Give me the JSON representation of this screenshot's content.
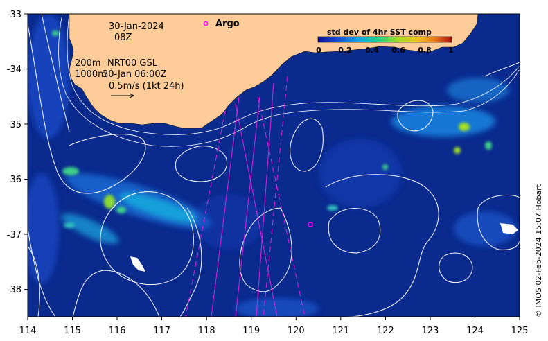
{
  "map": {
    "lon_range": [
      114,
      125
    ],
    "lat_range": [
      -38.5,
      -33
    ],
    "lon_ticks": [
      "114",
      "115",
      "116",
      "117",
      "118",
      "119",
      "120",
      "121",
      "122",
      "123",
      "124",
      "125"
    ],
    "lat_ticks": [
      "-33",
      "-34",
      "-35",
      "-36",
      "-37",
      "-38"
    ],
    "land_color": "#fdcc99",
    "ocean_color": "#0a2a8e",
    "contour_color": "#ffffff",
    "track_color": "#e020e0"
  },
  "annotations": {
    "date": "30-Jan-2024",
    "hour": "08Z",
    "isobath_200": "200m",
    "isobath_1000": "1000m",
    "product": "NRT00 GSL",
    "valid_time": "30-Jan 06:00Z",
    "vector_scale": "0.5m/s (1kt 24h)"
  },
  "argo": {
    "label": "Argo",
    "marker_color": "#ff00ff",
    "float_lon": 120.35,
    "float_lat": -36.82
  },
  "colorbar": {
    "title": "std dev of 4hr SST comp",
    "ticks": [
      "0",
      "0.2",
      "0.4",
      "0.6",
      "0.8",
      "1"
    ],
    "colormap": [
      "#0b0b8f",
      "#1746d6",
      "#14a6e8",
      "#1fd08a",
      "#a4df22",
      "#f0c81a",
      "#e8761a",
      "#a80f10"
    ]
  },
  "credit": "© IMOS 02-Feb-2024 15:07 Hobart"
}
